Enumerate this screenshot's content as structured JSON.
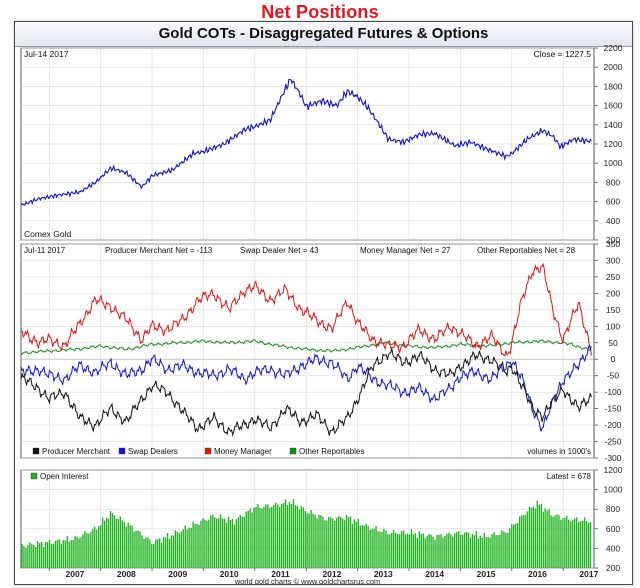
{
  "page": {
    "heading": "Net Positions"
  },
  "chart_data": [
    {
      "type": "line",
      "title": "Gold COTs - Disaggregated Futures & Options",
      "panel": "price",
      "date_label": "Jul-14  2017",
      "close_label": "Close = 1227.5",
      "corner_label": "Comex Gold",
      "ylim": [
        200,
        2200
      ],
      "yticks": [
        200,
        400,
        600,
        800,
        1000,
        1200,
        1400,
        1600,
        1800,
        2000,
        2200
      ],
      "grid": true,
      "color": "#1010c8",
      "series": [
        {
          "x": [
            2006.5,
            2006.8,
            2007.2,
            2007.6,
            2007.9,
            2008.2,
            2008.5,
            2008.8,
            2009.0,
            2009.4,
            2009.8,
            2010.0,
            2010.4,
            2010.8,
            2011.0,
            2011.3,
            2011.6,
            2011.7,
            2011.9,
            2012.0,
            2012.3,
            2012.6,
            2012.8,
            2013.0,
            2013.2,
            2013.4,
            2013.6,
            2013.9,
            2014.2,
            2014.5,
            2014.9,
            2015.2,
            2015.5,
            2015.9,
            2016.0,
            2016.3,
            2016.6,
            2016.8,
            2016.95,
            2017.2,
            2017.55
          ],
          "values": [
            570,
            630,
            670,
            700,
            800,
            950,
            900,
            750,
            870,
            930,
            1100,
            1120,
            1200,
            1350,
            1380,
            1450,
            1780,
            1880,
            1700,
            1590,
            1650,
            1600,
            1750,
            1690,
            1580,
            1420,
            1250,
            1220,
            1300,
            1310,
            1180,
            1220,
            1150,
            1070,
            1100,
            1250,
            1340,
            1280,
            1170,
            1250,
            1227
          ]
        }
      ]
    },
    {
      "type": "line",
      "panel": "net_positions",
      "date_label": "Jul-11  2017",
      "header_labels": [
        "Producer Merchant Net = -113",
        "Swap Dealer Net = 43",
        "Money Manager Net = 27",
        "Other Reportables Net = 28"
      ],
      "units_note": "volumes in 1000's",
      "ylim": [
        -300,
        350
      ],
      "yticks": [
        -300,
        -250,
        -200,
        -150,
        -100,
        -50,
        0,
        50,
        100,
        150,
        200,
        250,
        300,
        350
      ],
      "grid": true,
      "legend": [
        "Producer Merchant",
        "Swap Dealers",
        "Money Manager",
        "Other Reportables"
      ],
      "series": [
        {
          "name": "Producer Merchant",
          "color": "#111111",
          "x": [
            2006.5,
            2006.8,
            2007.0,
            2007.3,
            2007.6,
            2007.9,
            2008.2,
            2008.5,
            2008.8,
            2009.0,
            2009.3,
            2009.6,
            2009.9,
            2010.2,
            2010.5,
            2010.8,
            2011.0,
            2011.3,
            2011.6,
            2011.9,
            2012.2,
            2012.5,
            2012.8,
            2013.0,
            2013.3,
            2013.6,
            2013.9,
            2014.2,
            2014.5,
            2014.8,
            2015.0,
            2015.3,
            2015.6,
            2015.9,
            2016.0,
            2016.2,
            2016.4,
            2016.6,
            2016.8,
            2017.0,
            2017.3,
            2017.55
          ],
          "values": [
            -60,
            -90,
            -120,
            -100,
            -180,
            -200,
            -150,
            -190,
            -120,
            -80,
            -100,
            -160,
            -210,
            -180,
            -220,
            -200,
            -180,
            -210,
            -150,
            -190,
            -170,
            -220,
            -180,
            -120,
            -20,
            20,
            -10,
            10,
            -30,
            -50,
            -20,
            10,
            0,
            -40,
            -20,
            -80,
            -150,
            -170,
            -130,
            -90,
            -150,
            -113
          ]
        },
        {
          "name": "Swap Dealers",
          "color": "#1414d2",
          "x": [
            2006.5,
            2006.8,
            2007.0,
            2007.3,
            2007.6,
            2007.9,
            2008.2,
            2008.5,
            2008.8,
            2009.0,
            2009.3,
            2009.6,
            2009.9,
            2010.2,
            2010.5,
            2010.8,
            2011.0,
            2011.3,
            2011.6,
            2011.9,
            2012.2,
            2012.5,
            2012.8,
            2013.0,
            2013.3,
            2013.6,
            2013.9,
            2014.2,
            2014.5,
            2014.8,
            2015.0,
            2015.3,
            2015.6,
            2015.9,
            2016.0,
            2016.2,
            2016.4,
            2016.6,
            2016.8,
            2017.0,
            2017.3,
            2017.55
          ],
          "values": [
            -40,
            -30,
            -50,
            -60,
            -20,
            -40,
            -10,
            -50,
            -30,
            0,
            -30,
            -20,
            -40,
            -50,
            -30,
            -60,
            -40,
            -30,
            -50,
            -20,
            0,
            -10,
            -60,
            -20,
            -60,
            -80,
            -100,
            -90,
            -120,
            -90,
            -50,
            -40,
            -60,
            -20,
            0,
            -60,
            -150,
            -210,
            -130,
            -60,
            -20,
            43
          ]
        },
        {
          "name": "Money Manager",
          "color": "#e41414",
          "x": [
            2006.5,
            2006.8,
            2007.0,
            2007.3,
            2007.6,
            2007.9,
            2008.2,
            2008.5,
            2008.8,
            2009.0,
            2009.3,
            2009.6,
            2009.9,
            2010.2,
            2010.5,
            2010.8,
            2011.0,
            2011.3,
            2011.6,
            2011.9,
            2012.2,
            2012.5,
            2012.8,
            2013.0,
            2013.3,
            2013.6,
            2013.9,
            2014.2,
            2014.5,
            2014.8,
            2015.0,
            2015.3,
            2015.6,
            2015.9,
            2016.0,
            2016.2,
            2016.4,
            2016.6,
            2016.8,
            2017.0,
            2017.3,
            2017.55
          ],
          "values": [
            80,
            50,
            60,
            40,
            110,
            180,
            160,
            120,
            60,
            100,
            90,
            120,
            180,
            200,
            150,
            210,
            220,
            180,
            210,
            150,
            120,
            90,
            180,
            110,
            60,
            40,
            40,
            90,
            60,
            100,
            80,
            40,
            70,
            10,
            50,
            180,
            270,
            280,
            150,
            60,
            170,
            27
          ]
        },
        {
          "name": "Other Reportables",
          "color": "#129412",
          "x": [
            2006.5,
            2007.0,
            2007.5,
            2008.0,
            2008.5,
            2009.0,
            2009.5,
            2010.0,
            2010.5,
            2011.0,
            2011.5,
            2012.0,
            2012.5,
            2013.0,
            2013.5,
            2014.0,
            2014.5,
            2015.0,
            2015.5,
            2016.0,
            2016.5,
            2017.0,
            2017.55
          ],
          "values": [
            20,
            25,
            30,
            40,
            30,
            45,
            50,
            55,
            50,
            55,
            40,
            30,
            25,
            35,
            50,
            40,
            35,
            45,
            40,
            50,
            55,
            50,
            28
          ]
        }
      ]
    },
    {
      "type": "bar",
      "panel": "open_interest",
      "legend": [
        "Open Interest"
      ],
      "latest_label": "Latest = 678",
      "color": "#22b322",
      "ylim": [
        200,
        1200
      ],
      "yticks": [
        200,
        400,
        600,
        800,
        1000,
        1200
      ],
      "grid": true,
      "x": [
        2006.5,
        2007.0,
        2007.5,
        2007.9,
        2008.2,
        2008.6,
        2009.0,
        2009.4,
        2009.8,
        2010.2,
        2010.6,
        2011.0,
        2011.4,
        2011.7,
        2012.0,
        2012.4,
        2012.8,
        2013.2,
        2013.6,
        2014.0,
        2014.5,
        2015.0,
        2015.5,
        2015.9,
        2016.3,
        2016.5,
        2016.8,
        2017.1,
        2017.55
      ],
      "values": [
        430,
        460,
        500,
        600,
        760,
        620,
        460,
        540,
        640,
        730,
        680,
        820,
        840,
        880,
        780,
        700,
        720,
        620,
        560,
        560,
        520,
        560,
        520,
        570,
        780,
        860,
        740,
        700,
        678
      ]
    }
  ],
  "x_axis": {
    "range": [
      2006.45,
      2017.6
    ],
    "year_labels": [
      "2007",
      "2008",
      "2009",
      "2010",
      "2011",
      "2012",
      "2013",
      "2014",
      "2015",
      "2016",
      "2017"
    ],
    "footer_note": "world gold charts © www.goldchartsrus.com"
  }
}
